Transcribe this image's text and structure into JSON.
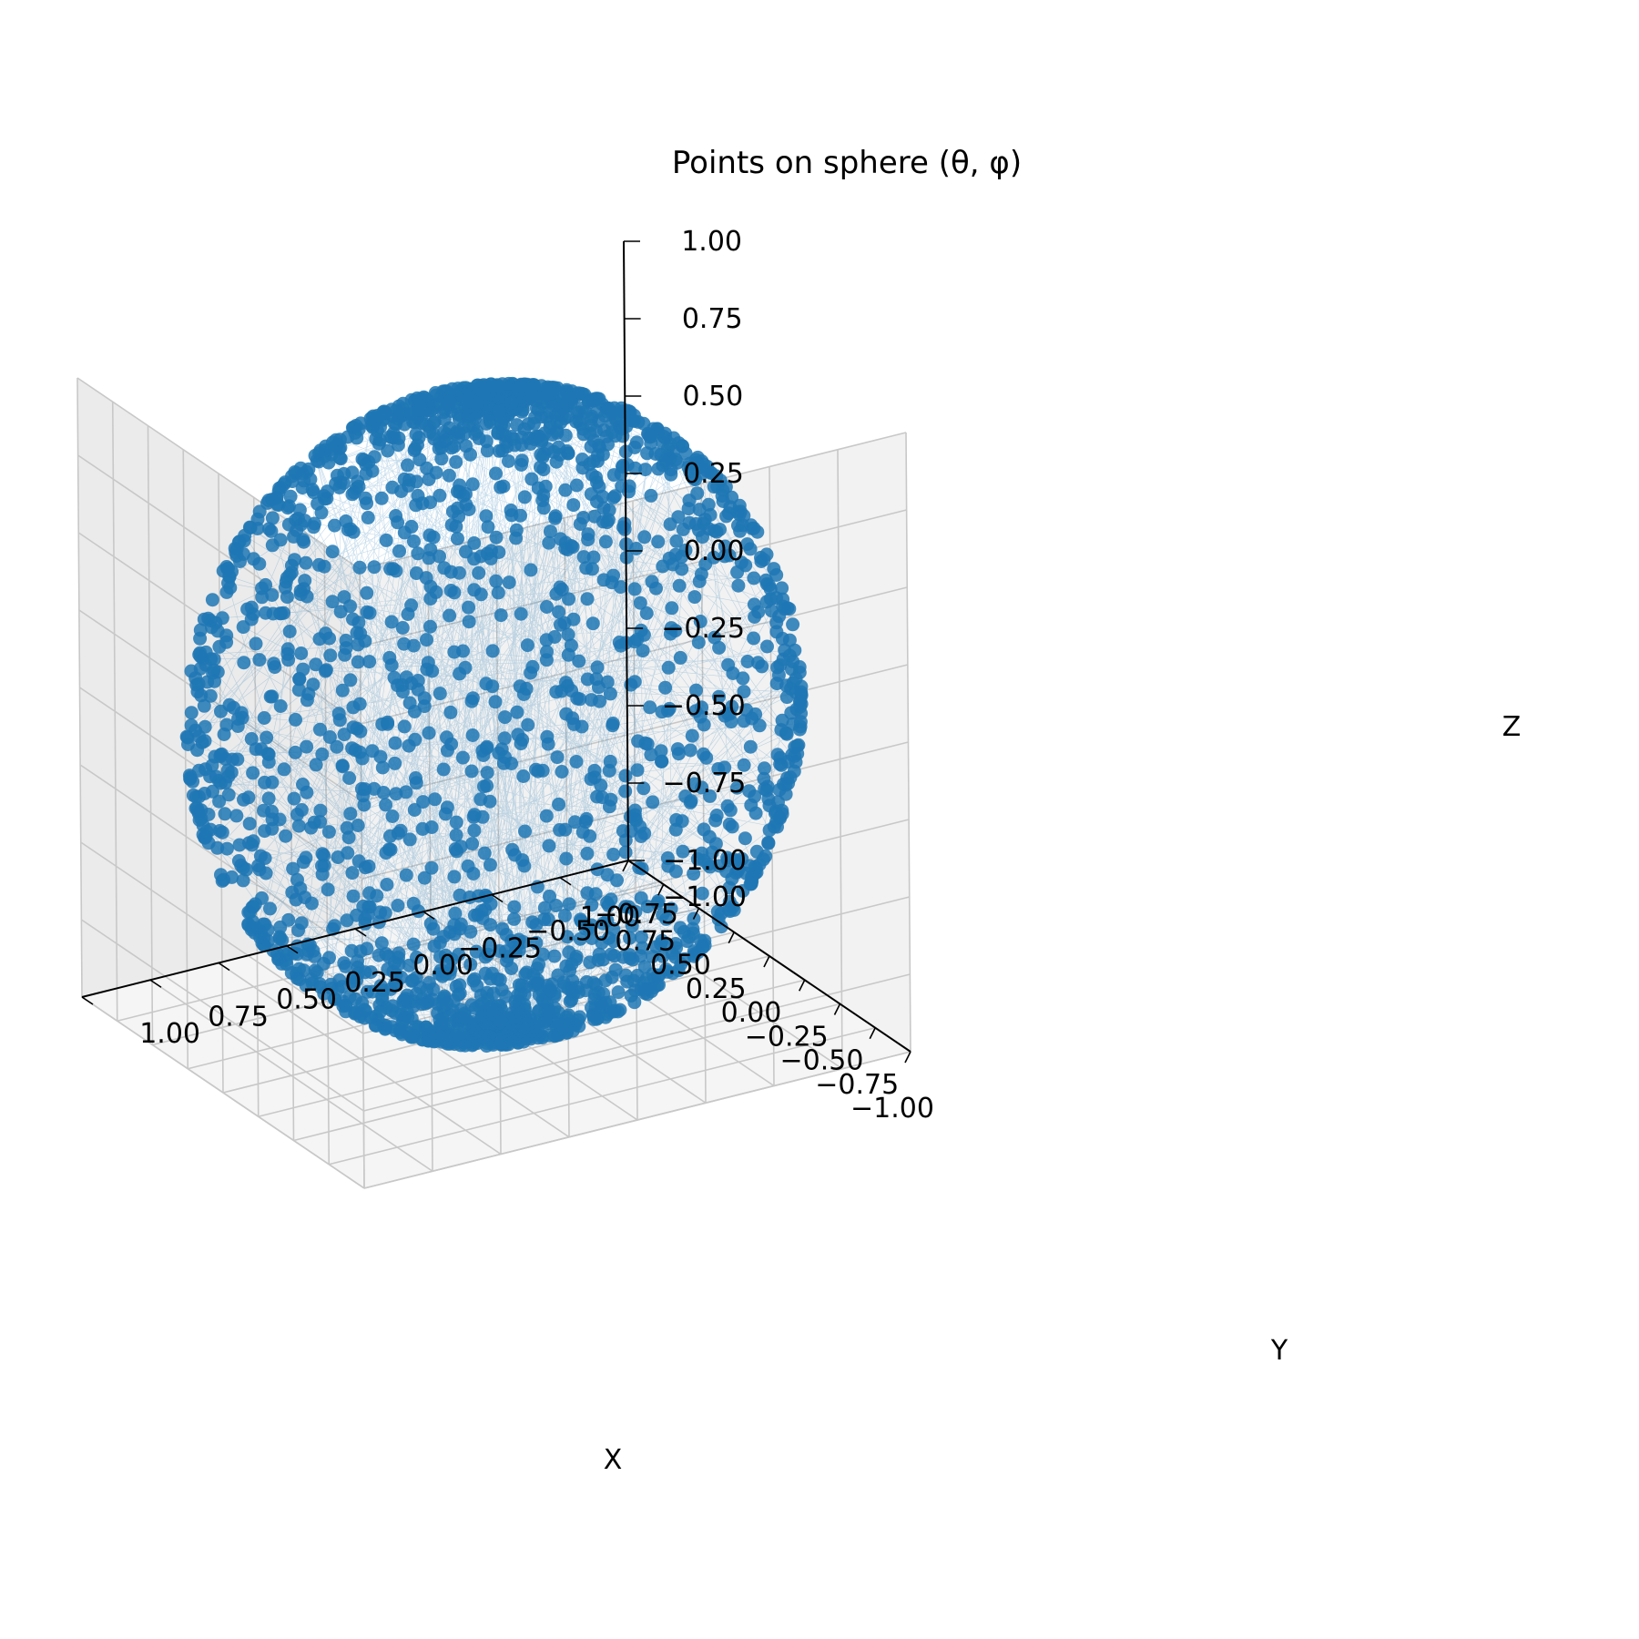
{
  "chart_data": {
    "type": "scatter",
    "projection": "3d",
    "title": "Points on sphere (θ, φ)",
    "xlabel": "X",
    "ylabel": "Y",
    "zlabel": "Z",
    "xlim": [
      -1.0,
      1.0
    ],
    "ylim": [
      -1.0,
      1.0
    ],
    "zlim": [
      -1.0,
      1.0
    ],
    "xticks": [
      "−1.00",
      "−0.75",
      "−0.50",
      "−0.25",
      "0.00",
      "0.25",
      "0.50",
      "0.75",
      "1.00"
    ],
    "yticks": [
      "−1.00",
      "−0.75",
      "−0.50",
      "−0.25",
      "0.00",
      "0.25",
      "0.50",
      "0.75",
      "1.00"
    ],
    "zticks": [
      "−1.00",
      "−0.75",
      "−0.50",
      "−0.25",
      "0.00",
      "0.25",
      "0.50",
      "0.75",
      "1.00"
    ],
    "grid": true,
    "legend": "none",
    "series": [
      {
        "marker_color": "#1f77b4",
        "line_color": "#1f77b4",
        "connected_by_thin_lines": true,
        "distribution": "random points on the unit sphere (radius 1) parameterized by θ and φ",
        "points": [
          {
            "x": 0.0,
            "y": 0.0,
            "z": 1.0
          },
          {
            "x": 0.0,
            "y": 0.0,
            "z": -1.0
          },
          {
            "x": 1.0,
            "y": 0.0,
            "z": 0.0
          },
          {
            "x": -1.0,
            "y": 0.0,
            "z": 0.0
          },
          {
            "x": 0.0,
            "y": 1.0,
            "z": 0.0
          },
          {
            "x": 0.0,
            "y": -1.0,
            "z": 0.0
          },
          {
            "x": 0.5,
            "y": 0.5,
            "z": 0.707
          },
          {
            "x": -0.5,
            "y": 0.5,
            "z": 0.707
          },
          {
            "x": 0.5,
            "y": -0.5,
            "z": 0.707
          },
          {
            "x": -0.5,
            "y": -0.5,
            "z": 0.707
          },
          {
            "x": 0.5,
            "y": 0.5,
            "z": -0.707
          },
          {
            "x": -0.5,
            "y": -0.5,
            "z": -0.707
          },
          {
            "x": 0.707,
            "y": 0.707,
            "z": 0.0
          },
          {
            "x": -0.707,
            "y": 0.707,
            "z": 0.0
          },
          {
            "x": 0.707,
            "y": -0.707,
            "z": 0.0
          },
          {
            "x": -0.707,
            "y": -0.707,
            "z": 0.0
          }
        ]
      }
    ]
  }
}
